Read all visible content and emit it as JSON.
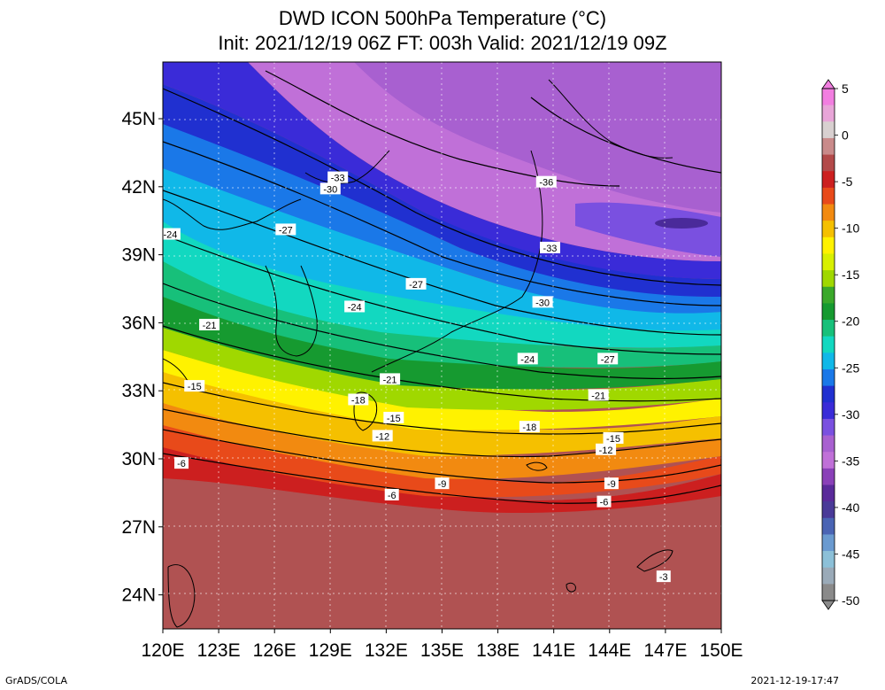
{
  "title": "DWD ICON 500hPa Temperature (°C)",
  "subtitle": "Init: 2021/12/19 06Z  FT: 003h  Valid: 2021/12/19 09Z",
  "footer_left": "GrADS/COLA",
  "footer_right": "2021-12-19-17:47",
  "lat_ticks": [
    {
      "label": "45N",
      "value": 45
    },
    {
      "label": "42N",
      "value": 42
    },
    {
      "label": "39N",
      "value": 39
    },
    {
      "label": "36N",
      "value": 36
    },
    {
      "label": "33N",
      "value": 33
    },
    {
      "label": "30N",
      "value": 30
    },
    {
      "label": "27N",
      "value": 27
    },
    {
      "label": "24N",
      "value": 24
    }
  ],
  "lon_ticks": [
    {
      "label": "120E",
      "value": 120
    },
    {
      "label": "123E",
      "value": 123
    },
    {
      "label": "126E",
      "value": 126
    },
    {
      "label": "129E",
      "value": 129
    },
    {
      "label": "132E",
      "value": 132
    },
    {
      "label": "135E",
      "value": 135
    },
    {
      "label": "138E",
      "value": 138
    },
    {
      "label": "141E",
      "value": 141
    },
    {
      "label": "144E",
      "value": 144
    },
    {
      "label": "147E",
      "value": 147
    },
    {
      "label": "150E",
      "value": 150
    }
  ],
  "colorbar": {
    "labels": [
      "5",
      "0",
      "-5",
      "-10",
      "-15",
      "-20",
      "-25",
      "-30",
      "-35",
      "-40",
      "-45",
      "-50"
    ],
    "colors": [
      "#f27ee0",
      "#e8a5d8",
      "#d8d0d0",
      "#c98a8a",
      "#b34a4a",
      "#cc1f1f",
      "#e84a1a",
      "#f28a10",
      "#f5c000",
      "#fff200",
      "#d8f000",
      "#a0d800",
      "#3aa82a",
      "#169a30",
      "#17c07a",
      "#12d8c0",
      "#10b8e8",
      "#1a78e8",
      "#2030d0",
      "#3a2bd8",
      "#7a50e0",
      "#a860d0",
      "#c070d8",
      "#8a40b8",
      "#5a2a9a",
      "#4a3a98",
      "#4a64b4",
      "#6a9ad0",
      "#8cc0d8",
      "#9aaab8",
      "#8a8a8a"
    ]
  },
  "contour_labels": [
    {
      "text": "-33",
      "lon": 129.4,
      "lat": 42.4
    },
    {
      "text": "-30",
      "lon": 129.0,
      "lat": 41.9
    },
    {
      "text": "-36",
      "lon": 140.6,
      "lat": 42.2
    },
    {
      "text": "-33",
      "lon": 140.8,
      "lat": 39.3
    },
    {
      "text": "-30",
      "lon": 140.4,
      "lat": 36.9
    },
    {
      "text": "-27",
      "lon": 126.6,
      "lat": 40.1
    },
    {
      "text": "-24",
      "lon": 120.4,
      "lat": 39.9
    },
    {
      "text": "-27",
      "lon": 133.6,
      "lat": 37.7
    },
    {
      "text": "-24",
      "lon": 130.3,
      "lat": 36.7
    },
    {
      "text": "-21",
      "lon": 122.5,
      "lat": 35.9
    },
    {
      "text": "-24",
      "lon": 139.6,
      "lat": 34.4
    },
    {
      "text": "-27",
      "lon": 143.9,
      "lat": 34.4
    },
    {
      "text": "-21",
      "lon": 132.2,
      "lat": 33.5
    },
    {
      "text": "-21",
      "lon": 143.4,
      "lat": 32.8
    },
    {
      "text": "-15",
      "lon": 121.7,
      "lat": 33.2
    },
    {
      "text": "-18",
      "lon": 130.5,
      "lat": 32.6
    },
    {
      "text": "-15",
      "lon": 132.4,
      "lat": 31.8
    },
    {
      "text": "-12",
      "lon": 131.8,
      "lat": 31.0
    },
    {
      "text": "-18",
      "lon": 139.7,
      "lat": 31.4
    },
    {
      "text": "-15",
      "lon": 144.2,
      "lat": 30.9
    },
    {
      "text": "-12",
      "lon": 143.8,
      "lat": 30.4
    },
    {
      "text": "-6",
      "lon": 121.0,
      "lat": 29.8
    },
    {
      "text": "-9",
      "lon": 135.0,
      "lat": 28.9
    },
    {
      "text": "-9",
      "lon": 144.1,
      "lat": 28.9
    },
    {
      "text": "-6",
      "lon": 132.3,
      "lat": 28.4
    },
    {
      "text": "-6",
      "lon": 143.7,
      "lat": 28.1
    },
    {
      "text": "-3",
      "lon": 146.9,
      "lat": 24.8
    }
  ]
}
